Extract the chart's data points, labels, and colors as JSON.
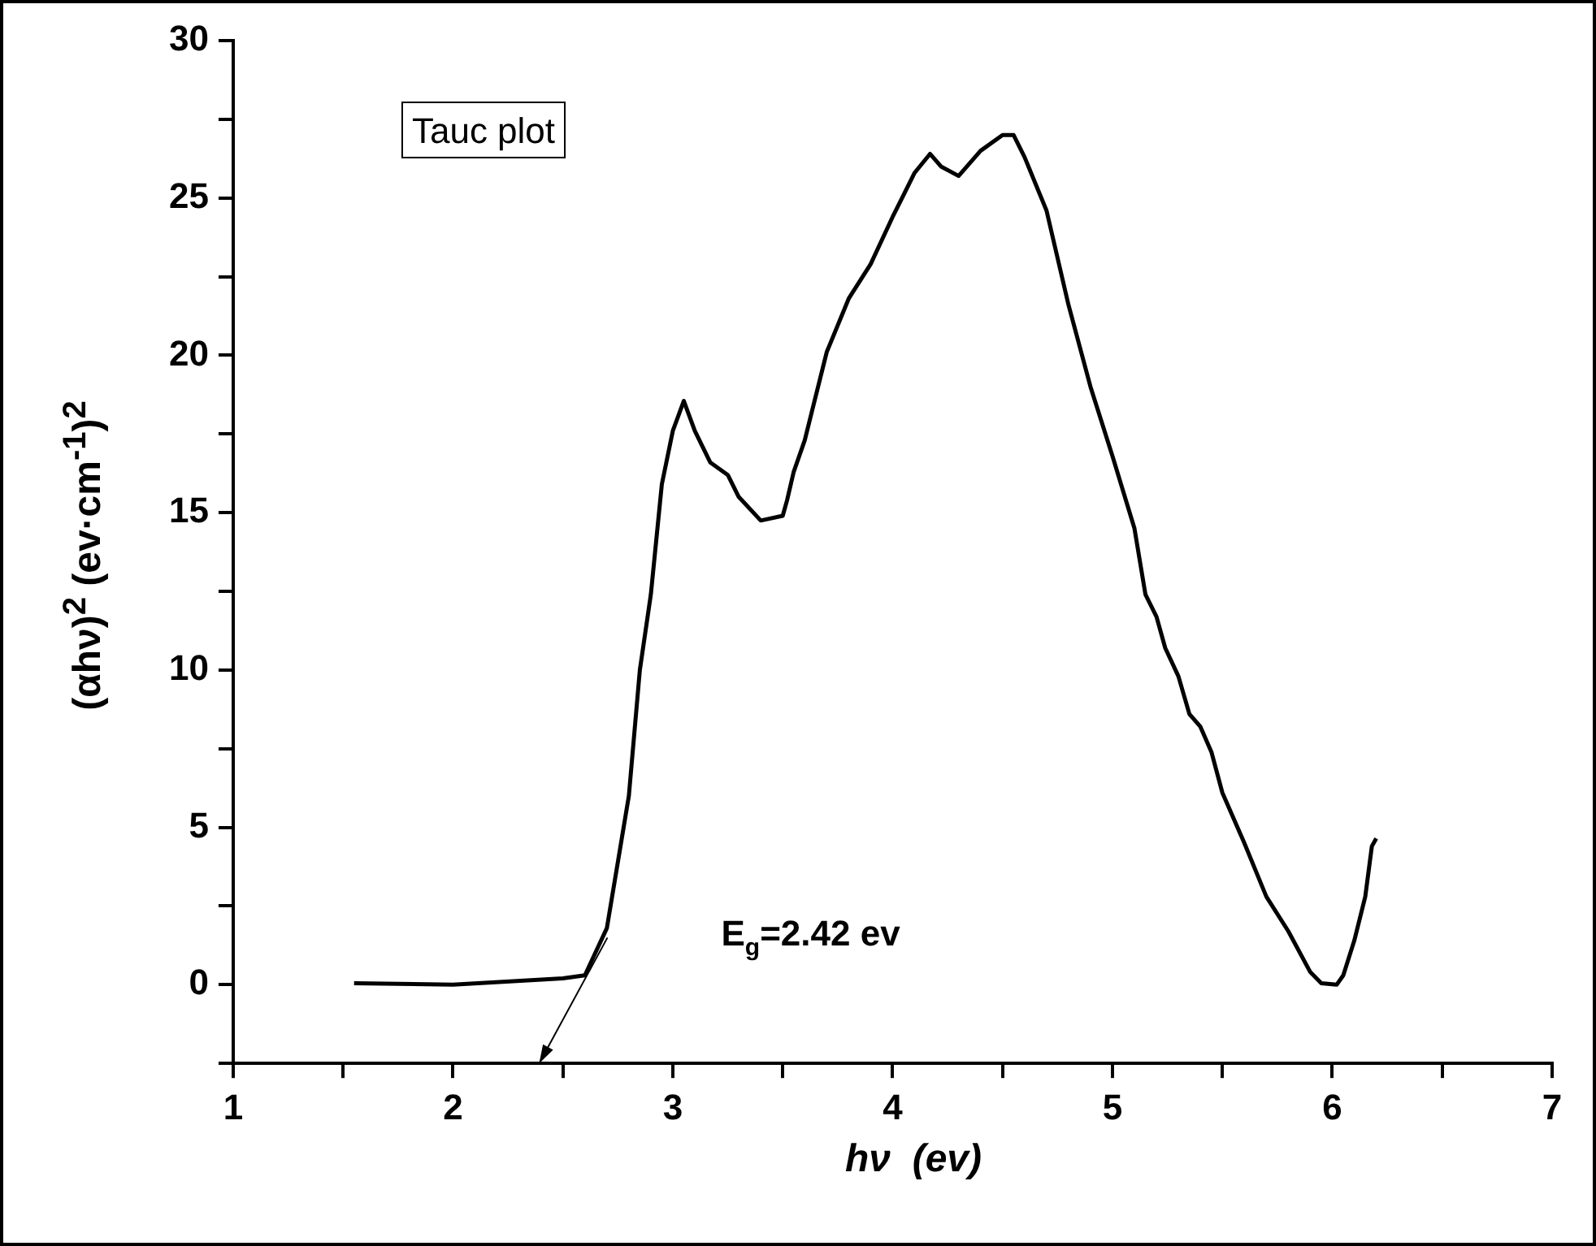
{
  "chart_data": {
    "type": "line",
    "xlabel": "hν  (ev)",
    "ylabel": "(αhν)$^{2}$ (ev·cm$^{-1}$)$^{2}$",
    "xlim": [
      1,
      7
    ],
    "xticks": [
      1,
      {
        "value": 1.5,
        "label": null
      },
      2,
      {
        "value": 2.5,
        "label": null
      },
      3,
      {
        "value": 3.5,
        "label": null
      },
      4,
      {
        "value": 4.5,
        "label": null
      },
      5,
      {
        "value": 5.5,
        "label": null
      },
      6,
      {
        "value": 6.5,
        "label": null
      },
      7
    ],
    "ylim": [
      -2.5,
      30
    ],
    "yticks": [
      {
        "value": -2.5,
        "label": null
      },
      0,
      {
        "value": 2.5,
        "label": null
      },
      5,
      {
        "value": 7.5,
        "label": null
      },
      10,
      {
        "value": 12.5,
        "label": null
      },
      15,
      {
        "value": 17.5,
        "label": null
      },
      20,
      {
        "value": 22.5,
        "label": null
      },
      25,
      {
        "value": 27.5,
        "label": null
      },
      30
    ],
    "grid": false,
    "legend": false,
    "marker": "none",
    "line_style": "solid",
    "annotations": [
      "Tauc plot",
      "E$_{g}$=2.42 ev"
    ],
    "series": [
      {
        "color": "#000000",
        "x": [
          1.55,
          2.0,
          2.5,
          2.6,
          2.7,
          2.8,
          2.85,
          2.9,
          2.95,
          3.0,
          3.05,
          3.1,
          3.17,
          3.25,
          3.3,
          3.4,
          3.5,
          3.52,
          3.55,
          3.6,
          3.7,
          3.8,
          3.9,
          4.0,
          4.05,
          4.1,
          4.17,
          4.22,
          4.3,
          4.4,
          4.5,
          4.55,
          4.6,
          4.7,
          4.8,
          4.9,
          5.0,
          5.1,
          5.15,
          5.2,
          5.24,
          5.3,
          5.35,
          5.4,
          5.45,
          5.5,
          5.6,
          5.7,
          5.8,
          5.9,
          5.95,
          6.02,
          6.05,
          6.1,
          6.15,
          6.18,
          6.2
        ],
        "values": [
          0.05,
          0,
          0.2,
          0.3,
          1.8,
          6.0,
          10,
          12.4,
          15.9,
          17.6,
          18.55,
          17.6,
          16.6,
          16.2,
          15.5,
          14.75,
          14.9,
          15.4,
          16.3,
          17.3,
          20.1,
          21.8,
          22.9,
          24.4,
          25.1,
          25.8,
          26.4,
          26.0,
          25.7,
          26.5,
          27.0,
          27.0,
          26.3,
          24.6,
          21.6,
          19.0,
          16.8,
          14.5,
          12.4,
          11.7,
          10.7,
          9.8,
          8.6,
          8.2,
          7.4,
          6.1,
          4.5,
          2.8,
          1.7,
          0.4,
          0.05,
          0,
          0.3,
          1.4,
          2.8,
          4.4,
          4.65
        ]
      }
    ]
  }
}
